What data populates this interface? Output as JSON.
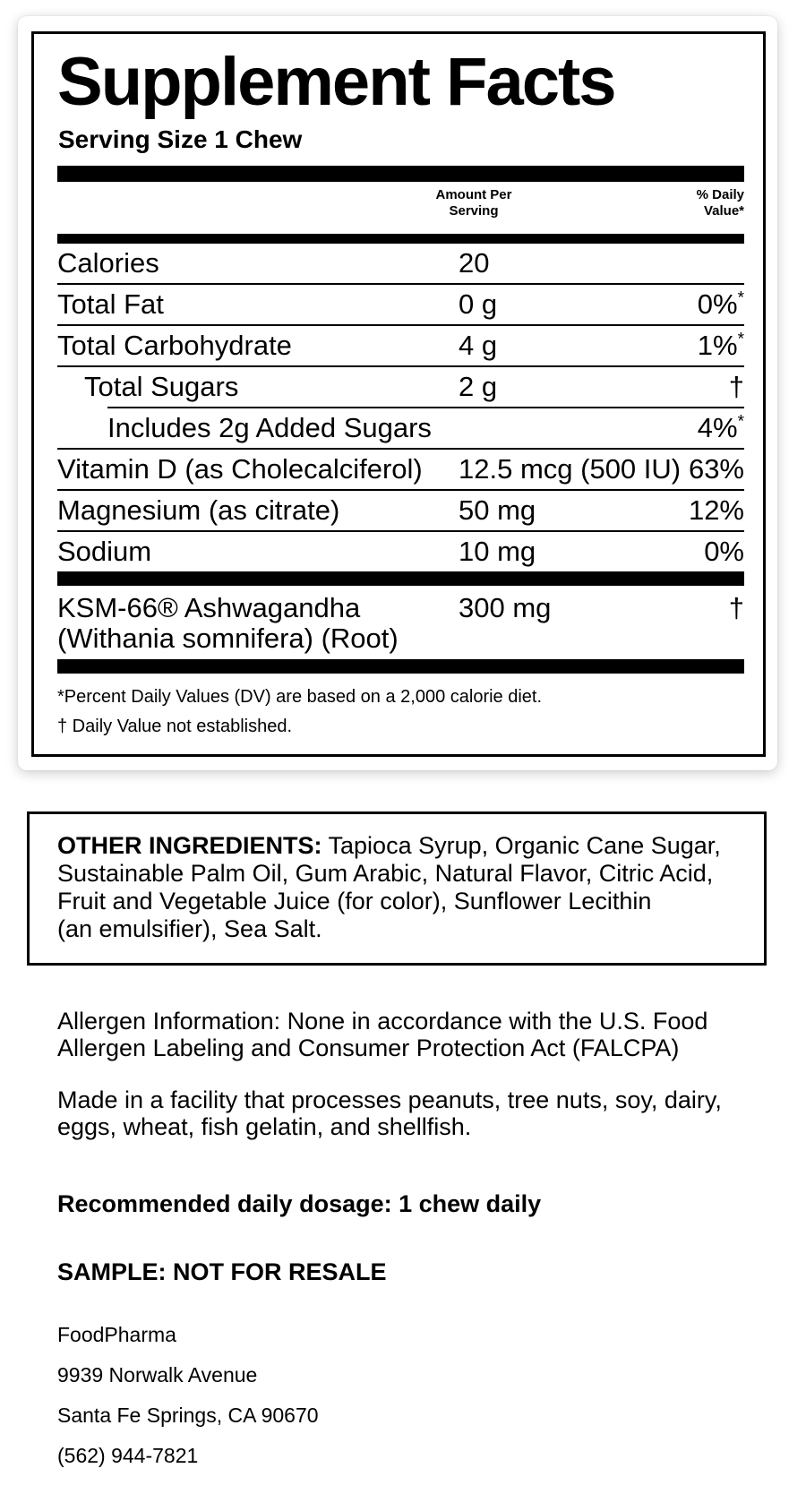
{
  "facts": {
    "title": "Supplement Facts",
    "serving_size": "Serving Size 1 Chew",
    "header": {
      "amount_line1": "Amount Per",
      "amount_line2": "Serving",
      "dv_line1": "% Daily",
      "dv_line2": "Value*"
    },
    "rows": [
      {
        "label": "Calories",
        "amount": "20",
        "dv": "",
        "dv_note": ""
      },
      {
        "label": "Total Fat",
        "amount": "0 g",
        "dv": "0%",
        "dv_note": "*"
      },
      {
        "label": "Total Carbohydrate",
        "amount": "4 g",
        "dv": "1%",
        "dv_note": "*"
      },
      {
        "label": "Total Sugars",
        "amount": "2 g",
        "dv": "†",
        "dv_note": ""
      },
      {
        "label": "Includes 2g Added Sugars",
        "amount": "",
        "dv": "4%",
        "dv_note": "*"
      },
      {
        "label": "Vitamin D (as Cholecalciferol)",
        "amount": "12.5 mcg (500 IU)",
        "dv": "63%",
        "dv_note": ""
      },
      {
        "label": "Magnesium (as citrate)",
        "amount": "50 mg",
        "dv": "12%",
        "dv_note": ""
      },
      {
        "label": "Sodium",
        "amount": "10 mg",
        "dv": "0%",
        "dv_note": ""
      }
    ],
    "botanical": {
      "label_line1": "KSM-66® Ashwagandha",
      "label_line2": "(Withania somnifera) (Root)",
      "amount": "300 mg",
      "dv": "†"
    },
    "footnotes": [
      "*Percent Daily Values (DV) are based on a 2,000 calorie diet.",
      "† Daily Value not established."
    ]
  },
  "other_ingredients": {
    "heading": "OTHER INGREDIENTS:",
    "line1_rest": " Tapioca Syrup, Organic Cane Sugar,",
    "line2": "Sustainable Palm Oil, Gum Arabic, Natural Flavor, Citric Acid,",
    "line3": "Fruit and Vegetable Juice (for color), Sunflower Lecithin",
    "line4": "(an emulsifier), Sea Salt."
  },
  "allergen": {
    "line1": "Allergen Information: None in accordance with the U.S. Food",
    "line2": "Allergen Labeling and Consumer Protection Act (FALCPA)"
  },
  "facility": {
    "line1": "Made in a facility that processes peanuts, tree nuts, soy, dairy,",
    "line2": "eggs, wheat, fish gelatin, and shellfish."
  },
  "dosage": "Recommended daily dosage: 1 chew daily",
  "sample_notice": "SAMPLE: NOT FOR RESALE",
  "contact": {
    "company": "FoodPharma",
    "street": "9939 Norwalk Avenue",
    "city": "Santa Fe Springs, CA 90670",
    "phone": "(562) 944-7821"
  },
  "colors": {
    "ink": "#000000",
    "background": "#ffffff"
  }
}
